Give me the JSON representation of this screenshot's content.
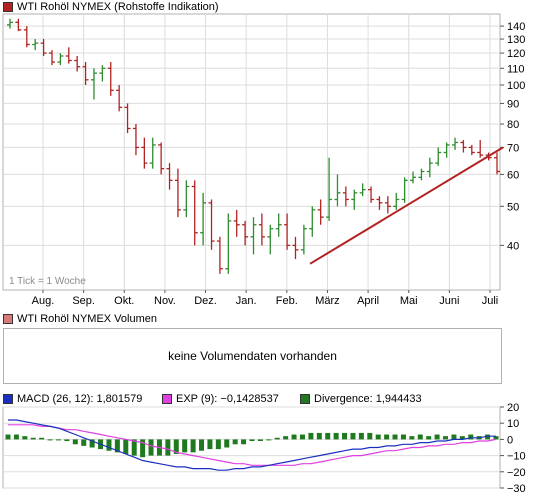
{
  "colors": {
    "up": "#2e8b2e",
    "down": "#b22222",
    "trendline": "#b22222",
    "grid": "#dddddd",
    "macd": "#1a2fbf",
    "exp": "#e040e0",
    "divergence": "#1f7a1f"
  },
  "price_panel": {
    "title": "WTI Rohöl NYMEX (Rohstoffe Indikation)",
    "title_color": "#b22222",
    "tick_note": "1 Tick = 1 Woche"
  },
  "volume_panel": {
    "title": "WTI Rohöl NYMEX Volumen",
    "title_color": "#d77a7a",
    "message": "keine Volumendaten vorhanden"
  },
  "macd_panel": {
    "macd_label": "MACD (26, 12): 1,801579",
    "exp_label": "EXP (9): −0,1428537",
    "divergence_label": "Divergence: 1,944433"
  },
  "chart_data": [
    {
      "type": "ohlc",
      "title": "WTI Rohöl NYMEX (Rohstoffe Indikation)",
      "scale": "log",
      "ylim": [
        31,
        150
      ],
      "yticks": [
        40,
        50,
        60,
        70,
        80,
        90,
        100,
        110,
        120,
        130,
        140
      ],
      "x_labels": [
        "Aug.",
        "Sep.",
        "Okt.",
        "Nov.",
        "Dez.",
        "Jan.",
        "Feb.",
        "März",
        "April",
        "Mai",
        "Juni",
        "Juli"
      ],
      "grid": true,
      "bars": [
        {
          "o": 141,
          "h": 146,
          "l": 138,
          "c": 143
        },
        {
          "o": 143,
          "h": 146,
          "l": 136,
          "c": 137
        },
        {
          "o": 137,
          "h": 140,
          "l": 124,
          "c": 126
        },
        {
          "o": 126,
          "h": 130,
          "l": 122,
          "c": 127
        },
        {
          "o": 127,
          "h": 130,
          "l": 118,
          "c": 120
        },
        {
          "o": 120,
          "h": 122,
          "l": 112,
          "c": 114
        },
        {
          "o": 114,
          "h": 120,
          "l": 112,
          "c": 118
        },
        {
          "o": 118,
          "h": 124,
          "l": 113,
          "c": 115
        },
        {
          "o": 115,
          "h": 118,
          "l": 108,
          "c": 111
        },
        {
          "o": 111,
          "h": 114,
          "l": 100,
          "c": 103
        },
        {
          "o": 103,
          "h": 110,
          "l": 92,
          "c": 107
        },
        {
          "o": 107,
          "h": 112,
          "l": 102,
          "c": 110
        },
        {
          "o": 110,
          "h": 114,
          "l": 94,
          "c": 97
        },
        {
          "o": 97,
          "h": 100,
          "l": 86,
          "c": 88
        },
        {
          "o": 88,
          "h": 90,
          "l": 76,
          "c": 78
        },
        {
          "o": 78,
          "h": 80,
          "l": 67,
          "c": 70
        },
        {
          "o": 70,
          "h": 74,
          "l": 62,
          "c": 64
        },
        {
          "o": 64,
          "h": 74,
          "l": 62,
          "c": 71
        },
        {
          "o": 71,
          "h": 72,
          "l": 60,
          "c": 62
        },
        {
          "o": 62,
          "h": 64,
          "l": 55,
          "c": 58
        },
        {
          "o": 58,
          "h": 62,
          "l": 47,
          "c": 49
        },
        {
          "o": 49,
          "h": 58,
          "l": 47,
          "c": 56
        },
        {
          "o": 56,
          "h": 58,
          "l": 40,
          "c": 43
        },
        {
          "o": 43,
          "h": 54,
          "l": 40,
          "c": 51
        },
        {
          "o": 51,
          "h": 52,
          "l": 39,
          "c": 41
        },
        {
          "o": 41,
          "h": 42,
          "l": 34,
          "c": 35
        },
        {
          "o": 35,
          "h": 48,
          "l": 34,
          "c": 46
        },
        {
          "o": 46,
          "h": 49,
          "l": 42,
          "c": 45
        },
        {
          "o": 45,
          "h": 46,
          "l": 40,
          "c": 42
        },
        {
          "o": 42,
          "h": 47,
          "l": 38,
          "c": 45
        },
        {
          "o": 45,
          "h": 48,
          "l": 40,
          "c": 42
        },
        {
          "o": 42,
          "h": 45,
          "l": 38,
          "c": 44
        },
        {
          "o": 44,
          "h": 48,
          "l": 42,
          "c": 45
        },
        {
          "o": 45,
          "h": 48,
          "l": 39,
          "c": 40
        },
        {
          "o": 40,
          "h": 42,
          "l": 37,
          "c": 39
        },
        {
          "o": 39,
          "h": 45,
          "l": 38,
          "c": 44
        },
        {
          "o": 44,
          "h": 50,
          "l": 42,
          "c": 49
        },
        {
          "o": 49,
          "h": 52,
          "l": 45,
          "c": 47
        },
        {
          "o": 47,
          "h": 66,
          "l": 46,
          "c": 52
        },
        {
          "o": 52,
          "h": 60,
          "l": 50,
          "c": 54
        },
        {
          "o": 54,
          "h": 56,
          "l": 50,
          "c": 52
        },
        {
          "o": 52,
          "h": 55,
          "l": 49,
          "c": 54
        },
        {
          "o": 54,
          "h": 57,
          "l": 53,
          "c": 55
        },
        {
          "o": 55,
          "h": 56,
          "l": 51,
          "c": 52
        },
        {
          "o": 52,
          "h": 53,
          "l": 49,
          "c": 51
        },
        {
          "o": 51,
          "h": 53,
          "l": 48,
          "c": 50
        },
        {
          "o": 50,
          "h": 54,
          "l": 49,
          "c": 52
        },
        {
          "o": 52,
          "h": 59,
          "l": 51,
          "c": 58
        },
        {
          "o": 58,
          "h": 61,
          "l": 57,
          "c": 59
        },
        {
          "o": 59,
          "h": 62,
          "l": 58,
          "c": 61
        },
        {
          "o": 61,
          "h": 66,
          "l": 59,
          "c": 64
        },
        {
          "o": 64,
          "h": 70,
          "l": 63,
          "c": 68
        },
        {
          "o": 68,
          "h": 72,
          "l": 66,
          "c": 71
        },
        {
          "o": 71,
          "h": 74,
          "l": 69,
          "c": 72
        },
        {
          "o": 72,
          "h": 73,
          "l": 68,
          "c": 70
        },
        {
          "o": 70,
          "h": 71,
          "l": 67,
          "c": 68
        },
        {
          "o": 68,
          "h": 73,
          "l": 66,
          "c": 67
        },
        {
          "o": 67,
          "h": 68,
          "l": 65,
          "c": 66
        },
        {
          "o": 66,
          "h": 68,
          "l": 60,
          "c": 61
        }
      ],
      "trendline": [
        [
          0.0,
          36
        ],
        [
          1.0,
          70
        ]
      ]
    },
    {
      "type": "volume",
      "title": "WTI Rohöl NYMEX Volumen",
      "values": []
    },
    {
      "type": "line+bar",
      "ylim": [
        -30,
        20
      ],
      "yticks": [
        20,
        10,
        0,
        -10,
        -20,
        -30
      ],
      "grid": true,
      "series": [
        {
          "name": "MACD (26, 12): 1,801579",
          "kind": "line",
          "values": [
            12,
            12,
            11,
            10,
            9,
            8,
            7,
            5,
            3,
            1,
            -1,
            -3,
            -5,
            -7,
            -9,
            -11,
            -13,
            -14,
            -15,
            -16,
            -17,
            -17,
            -18,
            -18,
            -18,
            -19,
            -19,
            -18,
            -18,
            -17,
            -17,
            -16,
            -15,
            -14,
            -13,
            -12,
            -11,
            -10,
            -9,
            -8,
            -7,
            -6,
            -6,
            -5,
            -5,
            -4,
            -4,
            -3,
            -3,
            -2,
            -2,
            -1,
            -1,
            0,
            0,
            1,
            1,
            2,
            2
          ]
        },
        {
          "name": "EXP (9): −0,1428537",
          "kind": "line",
          "values": [
            9,
            9,
            9,
            9,
            8,
            8,
            7,
            6,
            6,
            5,
            4,
            3,
            2,
            1,
            0,
            -1,
            -2,
            -4,
            -5,
            -6,
            -8,
            -9,
            -10,
            -11,
            -12,
            -13,
            -14,
            -15,
            -15,
            -16,
            -16,
            -16,
            -16,
            -16,
            -16,
            -15,
            -15,
            -14,
            -13,
            -12,
            -11,
            -10,
            -10,
            -9,
            -8,
            -7,
            -7,
            -6,
            -5,
            -5,
            -4,
            -4,
            -3,
            -3,
            -2,
            -2,
            -1,
            -1,
            0
          ]
        },
        {
          "name": "Divergence: 1,944433",
          "kind": "bar",
          "values": [
            3,
            3,
            2,
            1,
            1,
            0,
            0,
            -1,
            -3,
            -4,
            -5,
            -6,
            -7,
            -8,
            -9,
            -10,
            -11,
            -10,
            -10,
            -10,
            -9,
            -8,
            -8,
            -7,
            -6,
            -6,
            -5,
            -3,
            -3,
            -1,
            -1,
            0,
            1,
            2,
            3,
            3,
            4,
            4,
            4,
            4,
            4,
            4,
            4,
            4,
            3,
            3,
            3,
            3,
            2,
            3,
            2,
            3,
            2,
            3,
            2,
            3,
            2,
            3,
            2
          ]
        }
      ]
    }
  ]
}
